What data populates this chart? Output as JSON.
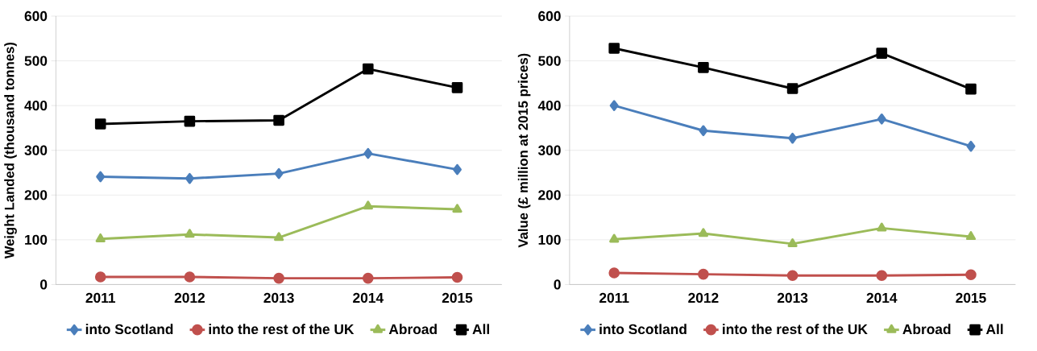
{
  "chart_data": [
    {
      "type": "line",
      "ylabel": "Weight Landed (thousand tonnes)",
      "categories": [
        "2011",
        "2012",
        "2013",
        "2014",
        "2015"
      ],
      "ylim": [
        0,
        600
      ],
      "yticks": [
        0,
        100,
        200,
        300,
        400,
        500,
        600
      ],
      "grid": "y",
      "legend": "bottom",
      "line_style": "solid",
      "series": [
        {
          "name": "into Scotland",
          "color": "#4a7ebb",
          "marker": "diamond",
          "values": [
            241,
            237,
            248,
            293,
            257
          ]
        },
        {
          "name": "into the rest of the UK",
          "color": "#c0504d",
          "marker": "circle",
          "values": [
            17,
            17,
            14,
            14,
            16
          ]
        },
        {
          "name": "Abroad",
          "color": "#9bbb59",
          "marker": "triangle",
          "values": [
            102,
            112,
            105,
            175,
            168
          ]
        },
        {
          "name": "All",
          "color": "#000000",
          "marker": "square",
          "values": [
            359,
            365,
            367,
            482,
            440
          ]
        }
      ]
    },
    {
      "type": "line",
      "ylabel": "Value (£ million at 2015 prices)",
      "categories": [
        "2011",
        "2012",
        "2013",
        "2014",
        "2015"
      ],
      "ylim": [
        0,
        600
      ],
      "yticks": [
        0,
        100,
        200,
        300,
        400,
        500,
        600
      ],
      "grid": "y",
      "legend": "bottom",
      "line_style": "solid",
      "series": [
        {
          "name": "into Scotland",
          "color": "#4a7ebb",
          "marker": "diamond",
          "values": [
            400,
            344,
            327,
            370,
            309
          ]
        },
        {
          "name": "into the rest of the UK",
          "color": "#c0504d",
          "marker": "circle",
          "values": [
            26,
            23,
            20,
            20,
            22
          ]
        },
        {
          "name": "Abroad",
          "color": "#9bbb59",
          "marker": "triangle",
          "values": [
            101,
            114,
            91,
            126,
            107
          ]
        },
        {
          "name": "All",
          "color": "#000000",
          "marker": "square",
          "values": [
            528,
            485,
            438,
            517,
            437
          ]
        }
      ]
    }
  ]
}
